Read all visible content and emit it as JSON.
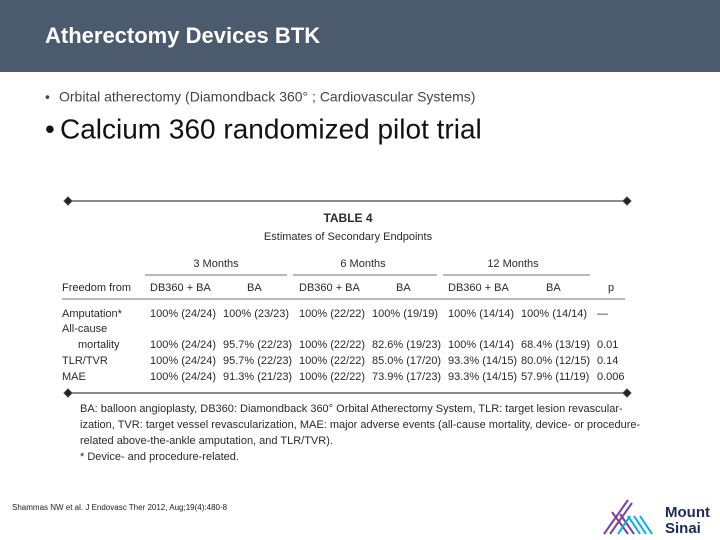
{
  "header": {
    "title": "Atherectomy Devices BTK"
  },
  "bullets": [
    "Orbital atherectomy (Diamondback 360° ; Cardiovascular Systems)",
    "Calcium 360 randomized pilot trial"
  ],
  "table": {
    "title": "TABLE 4",
    "subtitle": "Estimates of Secondary Endpoints",
    "groups": [
      "3 Months",
      "6 Months",
      "12 Months"
    ],
    "columns": [
      "Freedom from",
      "DB360 + BA",
      "BA",
      "DB360 + BA",
      "BA",
      "DB360 + BA",
      "BA",
      "p"
    ],
    "rows": [
      {
        "label": [
          "Amputation*"
        ],
        "cells": [
          "100% (24/24)",
          "100% (23/23)",
          "100% (22/22)",
          "100% (19/19)",
          "100% (14/14)",
          "100% (14/14)",
          "—"
        ]
      },
      {
        "label": [
          "All-cause",
          "mortality"
        ],
        "cells": [
          "100% (24/24)",
          "95.7% (22/23)",
          "100% (22/22)",
          "82.6% (19/23)",
          "100% (14/14)",
          "68.4% (13/19)",
          "0.01"
        ]
      },
      {
        "label": [
          "TLR/TVR"
        ],
        "cells": [
          "100% (24/24)",
          "95.7% (22/23)",
          "100% (22/22)",
          "85.0% (17/20)",
          "93.3% (14/15)",
          "80.0% (12/15)",
          "0.14"
        ]
      },
      {
        "label": [
          "MAE"
        ],
        "cells": [
          "100% (24/24)",
          "91.3% (21/23)",
          "100% (22/22)",
          "73.9% (17/23)",
          "93.3% (14/15)",
          "57.9% (11/19)",
          "0.006"
        ]
      }
    ],
    "footnote": [
      "BA: balloon angioplasty, DB360: Diamondback 360° Orbital Atherectomy System, TLR: target lesion revascular-",
      "ization, TVR: target vessel revascularization, MAE: major adverse events (all-cause mortality, device- or procedure-",
      "related above-the-ankle amputation, and TLR/TVR).",
      "* Device- and procedure-related."
    ]
  },
  "citation": "Shammas NW et al. J Endovasc Ther 2012, Aug;19(4):480-8",
  "logo": [
    "Mount",
    "Sinai"
  ]
}
